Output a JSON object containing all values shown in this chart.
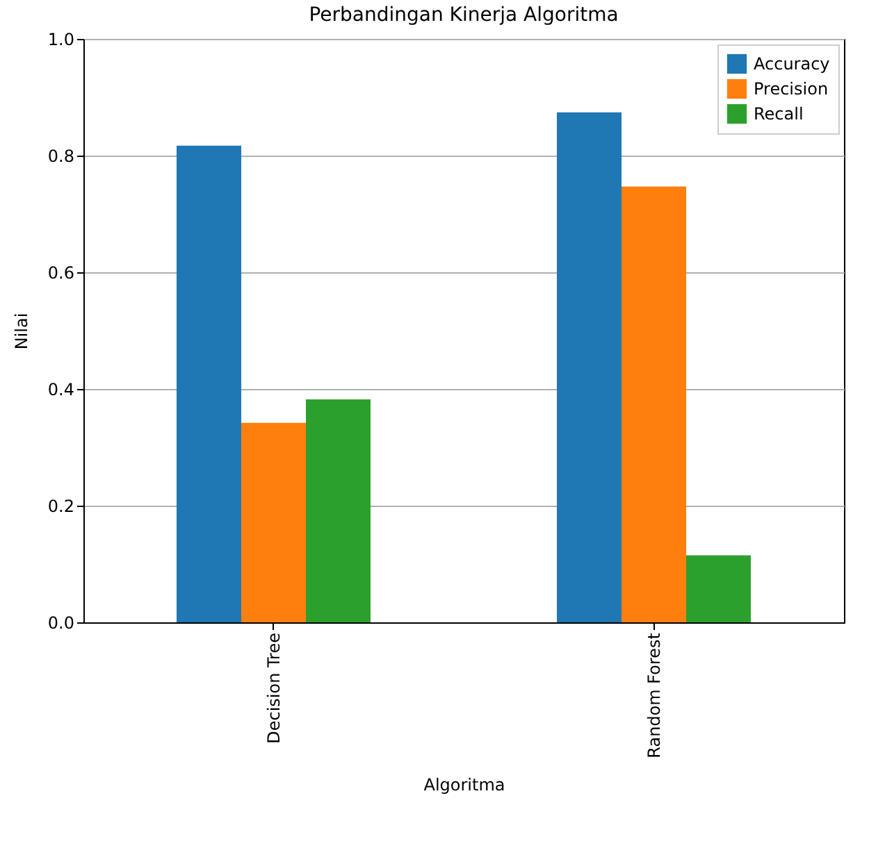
{
  "chart_data": {
    "type": "bar",
    "title": "Perbandingan Kinerja Algoritma",
    "xlabel": "Algoritma",
    "ylabel": "Nilai",
    "categories": [
      "Decision Tree",
      "Random Forest"
    ],
    "series": [
      {
        "name": "Accuracy",
        "color": "#1f77b4",
        "values": [
          0.817,
          0.874
        ]
      },
      {
        "name": "Precision",
        "color": "#ff7f0e",
        "values": [
          0.342,
          0.747
        ]
      },
      {
        "name": "Recall",
        "color": "#2ca02c",
        "values": [
          0.382,
          0.115
        ]
      }
    ],
    "ylim": [
      0,
      1
    ],
    "yticks": [
      {
        "value": 0,
        "label": "0.0"
      },
      0.2,
      0.4,
      0.6,
      0.8,
      {
        "value": 1,
        "label": "1.0"
      }
    ],
    "grid": "y",
    "legend": "top right"
  }
}
